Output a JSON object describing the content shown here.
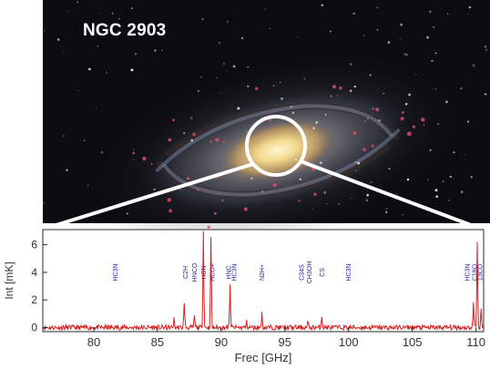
{
  "photo": {
    "title": "NGC 2903",
    "colors": {
      "space": "#0b0b10",
      "inset_circle": "#ffffff",
      "zoom_lines": "#ffffff"
    }
  },
  "chart_data": {
    "type": "line",
    "title": "",
    "xlabel": "Frec [GHz]",
    "ylabel": "Int [mK]",
    "xlim": [
      76,
      110.6
    ],
    "ylim": [
      -0.3,
      7.1
    ],
    "xticks": [
      80,
      85,
      90,
      95,
      100,
      105,
      110
    ],
    "yticks": [
      0,
      2,
      4,
      6
    ],
    "grid": false,
    "series": [
      {
        "color": "#d42020",
        "peaks": [
          {
            "x": 86.3,
            "y": 0.6
          },
          {
            "x": 87.1,
            "y": 1.9
          },
          {
            "x": 87.9,
            "y": 0.9
          },
          {
            "x": 88.6,
            "y": 7.0
          },
          {
            "x": 89.2,
            "y": 6.6
          },
          {
            "x": 90.7,
            "y": 3.1
          },
          {
            "x": 92.0,
            "y": 0.4
          },
          {
            "x": 93.2,
            "y": 1.0
          },
          {
            "x": 96.8,
            "y": 0.4
          },
          {
            "x": 97.9,
            "y": 0.9
          },
          {
            "x": 109.8,
            "y": 1.8
          },
          {
            "x": 110.1,
            "y": 6.3
          },
          {
            "x": 110.4,
            "y": 1.2
          }
        ]
      }
    ],
    "line_labels": [
      {
        "x": 81.7,
        "text": "HC3N"
      },
      {
        "x": 87.2,
        "text": "C2H"
      },
      {
        "x": 87.9,
        "text": "HNCO"
      },
      {
        "x": 88.6,
        "text": "HCN"
      },
      {
        "x": 89.3,
        "text": "HCO+"
      },
      {
        "x": 90.6,
        "text": "HNC"
      },
      {
        "x": 91.0,
        "text": "HC3N"
      },
      {
        "x": 93.2,
        "text": "N2H+"
      },
      {
        "x": 96.3,
        "text": "C34S"
      },
      {
        "x": 96.9,
        "text": "CH3OH"
      },
      {
        "x": 97.9,
        "text": "CS"
      },
      {
        "x": 100.0,
        "text": "HC3N"
      },
      {
        "x": 109.3,
        "text": "HC3N"
      },
      {
        "x": 109.9,
        "text": "C18O"
      },
      {
        "x": 110.3,
        "text": "13CO"
      }
    ],
    "label_color": "#1a1aa8"
  }
}
